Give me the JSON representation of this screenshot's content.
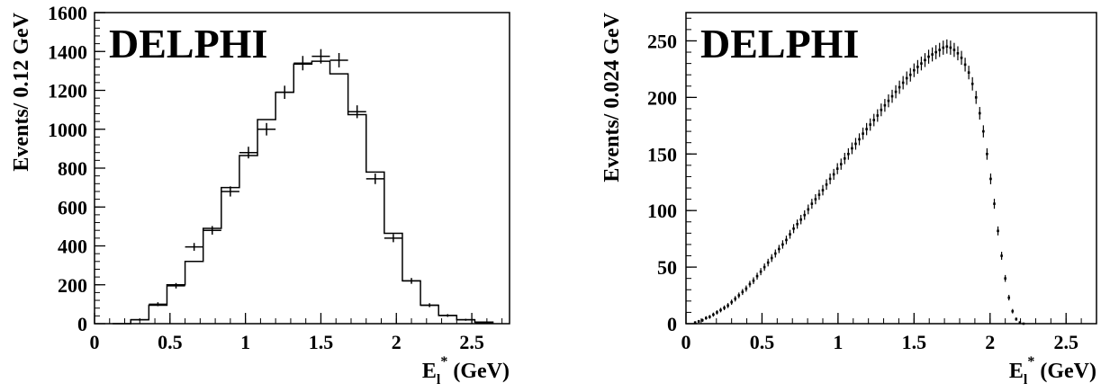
{
  "chart_data": [
    {
      "type": "histogram",
      "experiment_label": "DELPHI",
      "xlabel_main": "E",
      "xlabel_sub": "l",
      "xlabel_sup": "*",
      "xlabel_unit": " (GeV)",
      "ylabel": "Events/ 0.12 GeV",
      "xlim": [
        0,
        2.75
      ],
      "ylim": [
        0,
        1600
      ],
      "xticks": [
        "0",
        "0.5",
        "1",
        "1.5",
        "2",
        "2.5"
      ],
      "xtick_values": [
        0,
        0.5,
        1,
        1.5,
        2,
        2.5
      ],
      "yticks": [
        "0",
        "200",
        "400",
        "600",
        "800",
        "1000",
        "1200",
        "1400",
        "1600"
      ],
      "ytick_values": [
        0,
        200,
        400,
        600,
        800,
        1000,
        1200,
        1400,
        1600
      ],
      "bin_width": 0.12,
      "series": [
        {
          "role": "simulation histogram",
          "bin_edges": [
            0.12,
            0.24,
            0.36,
            0.48,
            0.6,
            0.72,
            0.84,
            0.96,
            1.08,
            1.2,
            1.32,
            1.44,
            1.56,
            1.68,
            1.8,
            1.92,
            2.04,
            2.16,
            2.28,
            2.4,
            2.52,
            2.64
          ],
          "values": [
            0,
            20,
            95,
            200,
            320,
            490,
            700,
            865,
            1050,
            1190,
            1335,
            1350,
            1285,
            1075,
            780,
            465,
            220,
            95,
            42,
            20,
            8
          ]
        },
        {
          "role": "data points",
          "x": [
            0.3,
            0.42,
            0.54,
            0.66,
            0.78,
            0.9,
            1.02,
            1.14,
            1.26,
            1.38,
            1.5,
            1.62,
            1.74,
            1.86,
            1.98,
            2.1,
            2.22,
            2.34,
            2.46,
            2.58
          ],
          "y": [
            20,
            100,
            195,
            395,
            480,
            680,
            880,
            1000,
            1190,
            1340,
            1375,
            1355,
            1090,
            745,
            440,
            220,
            95,
            42,
            20,
            5
          ],
          "yerr": [
            5,
            10,
            14,
            20,
            22,
            26,
            30,
            32,
            34,
            37,
            37,
            37,
            33,
            27,
            21,
            15,
            10,
            7,
            5,
            3
          ]
        }
      ]
    },
    {
      "type": "scatter",
      "experiment_label": "DELPHI",
      "xlabel_main": "E",
      "xlabel_sub": "l",
      "xlabel_sup": "*",
      "xlabel_unit": " (GeV)",
      "ylabel": "Events/ 0.024 GeV",
      "xlim": [
        0,
        2.7
      ],
      "ylim": [
        0,
        275
      ],
      "xticks": [
        "0",
        "0.5",
        "1",
        "1.5",
        "2",
        "2.5"
      ],
      "xtick_values": [
        0,
        0.5,
        1,
        1.5,
        2,
        2.5
      ],
      "yticks": [
        "0",
        "50",
        "100",
        "150",
        "200",
        "250"
      ],
      "ytick_values": [
        0,
        50,
        100,
        150,
        200,
        250
      ],
      "series": [
        {
          "role": "data points",
          "x_start": 0.06,
          "x_step": 0.024,
          "y": [
            1,
            2,
            3,
            5,
            6,
            8,
            10,
            12,
            14,
            16,
            19,
            22,
            25,
            28,
            31,
            35,
            38,
            42,
            46,
            50,
            54,
            58,
            62,
            66,
            70,
            74,
            79,
            84,
            88,
            92,
            96,
            101,
            106,
            110,
            114,
            118,
            123,
            128,
            132,
            137,
            141,
            146,
            150,
            155,
            159,
            163,
            168,
            172,
            176,
            180,
            184,
            189,
            193,
            197,
            201,
            205,
            209,
            213,
            217,
            220,
            224,
            227,
            230,
            233,
            236,
            238,
            240,
            242,
            244,
            245,
            244,
            242,
            239,
            235,
            229,
            222,
            212,
            200,
            186,
            170,
            150,
            128,
            106,
            82,
            60,
            40,
            23,
            11,
            4,
            1,
            0
          ]
        }
      ]
    }
  ]
}
